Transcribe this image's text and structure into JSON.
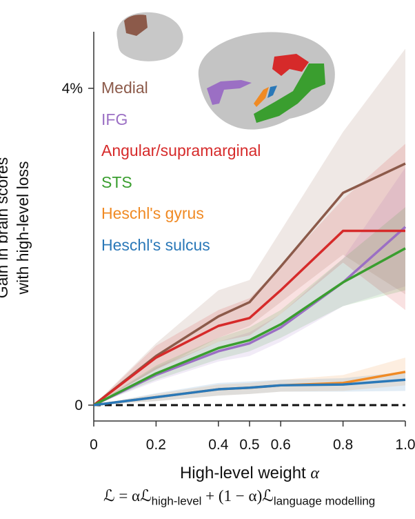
{
  "chart_data": {
    "type": "line",
    "x": [
      0,
      0.2,
      0.4,
      0.5,
      0.6,
      0.8,
      1.0
    ],
    "x_ticks": [
      "0",
      "0.2",
      "0.4",
      "0.5",
      "0.6",
      "0.8",
      "1.0"
    ],
    "y_ticks": [
      "0",
      "4%"
    ],
    "ylim": [
      -0.4,
      4.7
    ],
    "xlabel": "High-level weight",
    "xlabel_symbol": "α",
    "ylabel_line1": "Gain in brain scores",
    "ylabel_line2": "with high-level loss",
    "zero_line": "dashed",
    "legend_position": "top-left",
    "formula": {
      "lhs": "ℒ = αℒ",
      "sub1": "high-level",
      "mid": " + (1 − α)ℒ",
      "sub2": "language modelling"
    },
    "series": [
      {
        "name": "Medial",
        "color": "#8c5a4a",
        "values": [
          0,
          0.62,
          1.12,
          1.3,
          1.75,
          2.68,
          3.05
        ],
        "lower": [
          0,
          0.45,
          0.85,
          1.0,
          1.3,
          1.9,
          1.4
        ],
        "upper": [
          0,
          0.78,
          1.45,
          1.58,
          2.2,
          3.45,
          4.5
        ]
      },
      {
        "name": "IFG",
        "color": "#9b6fc4",
        "values": [
          0,
          0.38,
          0.68,
          0.78,
          0.98,
          1.55,
          2.25
        ],
        "lower": [
          0,
          0.3,
          0.55,
          0.62,
          0.8,
          1.25,
          1.5
        ],
        "upper": [
          0,
          0.48,
          0.8,
          0.92,
          1.15,
          1.85,
          3.0
        ]
      },
      {
        "name": "Angular/supramarginal",
        "color": "#d62a2a",
        "values": [
          0,
          0.6,
          1.0,
          1.1,
          1.45,
          2.2,
          2.2
        ],
        "lower": [
          0,
          0.45,
          0.8,
          0.88,
          1.15,
          1.8,
          1.2
        ],
        "upper": [
          0,
          0.75,
          1.2,
          1.35,
          1.75,
          2.6,
          3.3
        ]
      },
      {
        "name": "STS",
        "color": "#3a9e2f",
        "values": [
          0,
          0.4,
          0.72,
          0.82,
          1.02,
          1.55,
          1.98
        ],
        "lower": [
          0,
          0.32,
          0.58,
          0.68,
          0.85,
          1.25,
          1.45
        ],
        "upper": [
          0,
          0.5,
          0.85,
          0.98,
          1.2,
          1.85,
          2.5
        ]
      },
      {
        "name": "Heschl's gyrus",
        "color": "#f08a24",
        "values": [
          0,
          0.1,
          0.2,
          0.22,
          0.25,
          0.28,
          0.42
        ],
        "lower": [
          0,
          0.05,
          0.12,
          0.14,
          0.17,
          0.18,
          0.25
        ],
        "upper": [
          0,
          0.14,
          0.26,
          0.28,
          0.32,
          0.38,
          0.6
        ]
      },
      {
        "name": "Heschl's sulcus",
        "color": "#2a78b8",
        "values": [
          0,
          0.1,
          0.2,
          0.22,
          0.25,
          0.26,
          0.32
        ],
        "lower": [
          0,
          0.05,
          0.12,
          0.14,
          0.17,
          0.17,
          0.18
        ],
        "upper": [
          0,
          0.15,
          0.28,
          0.3,
          0.32,
          0.34,
          0.42
        ]
      }
    ]
  }
}
